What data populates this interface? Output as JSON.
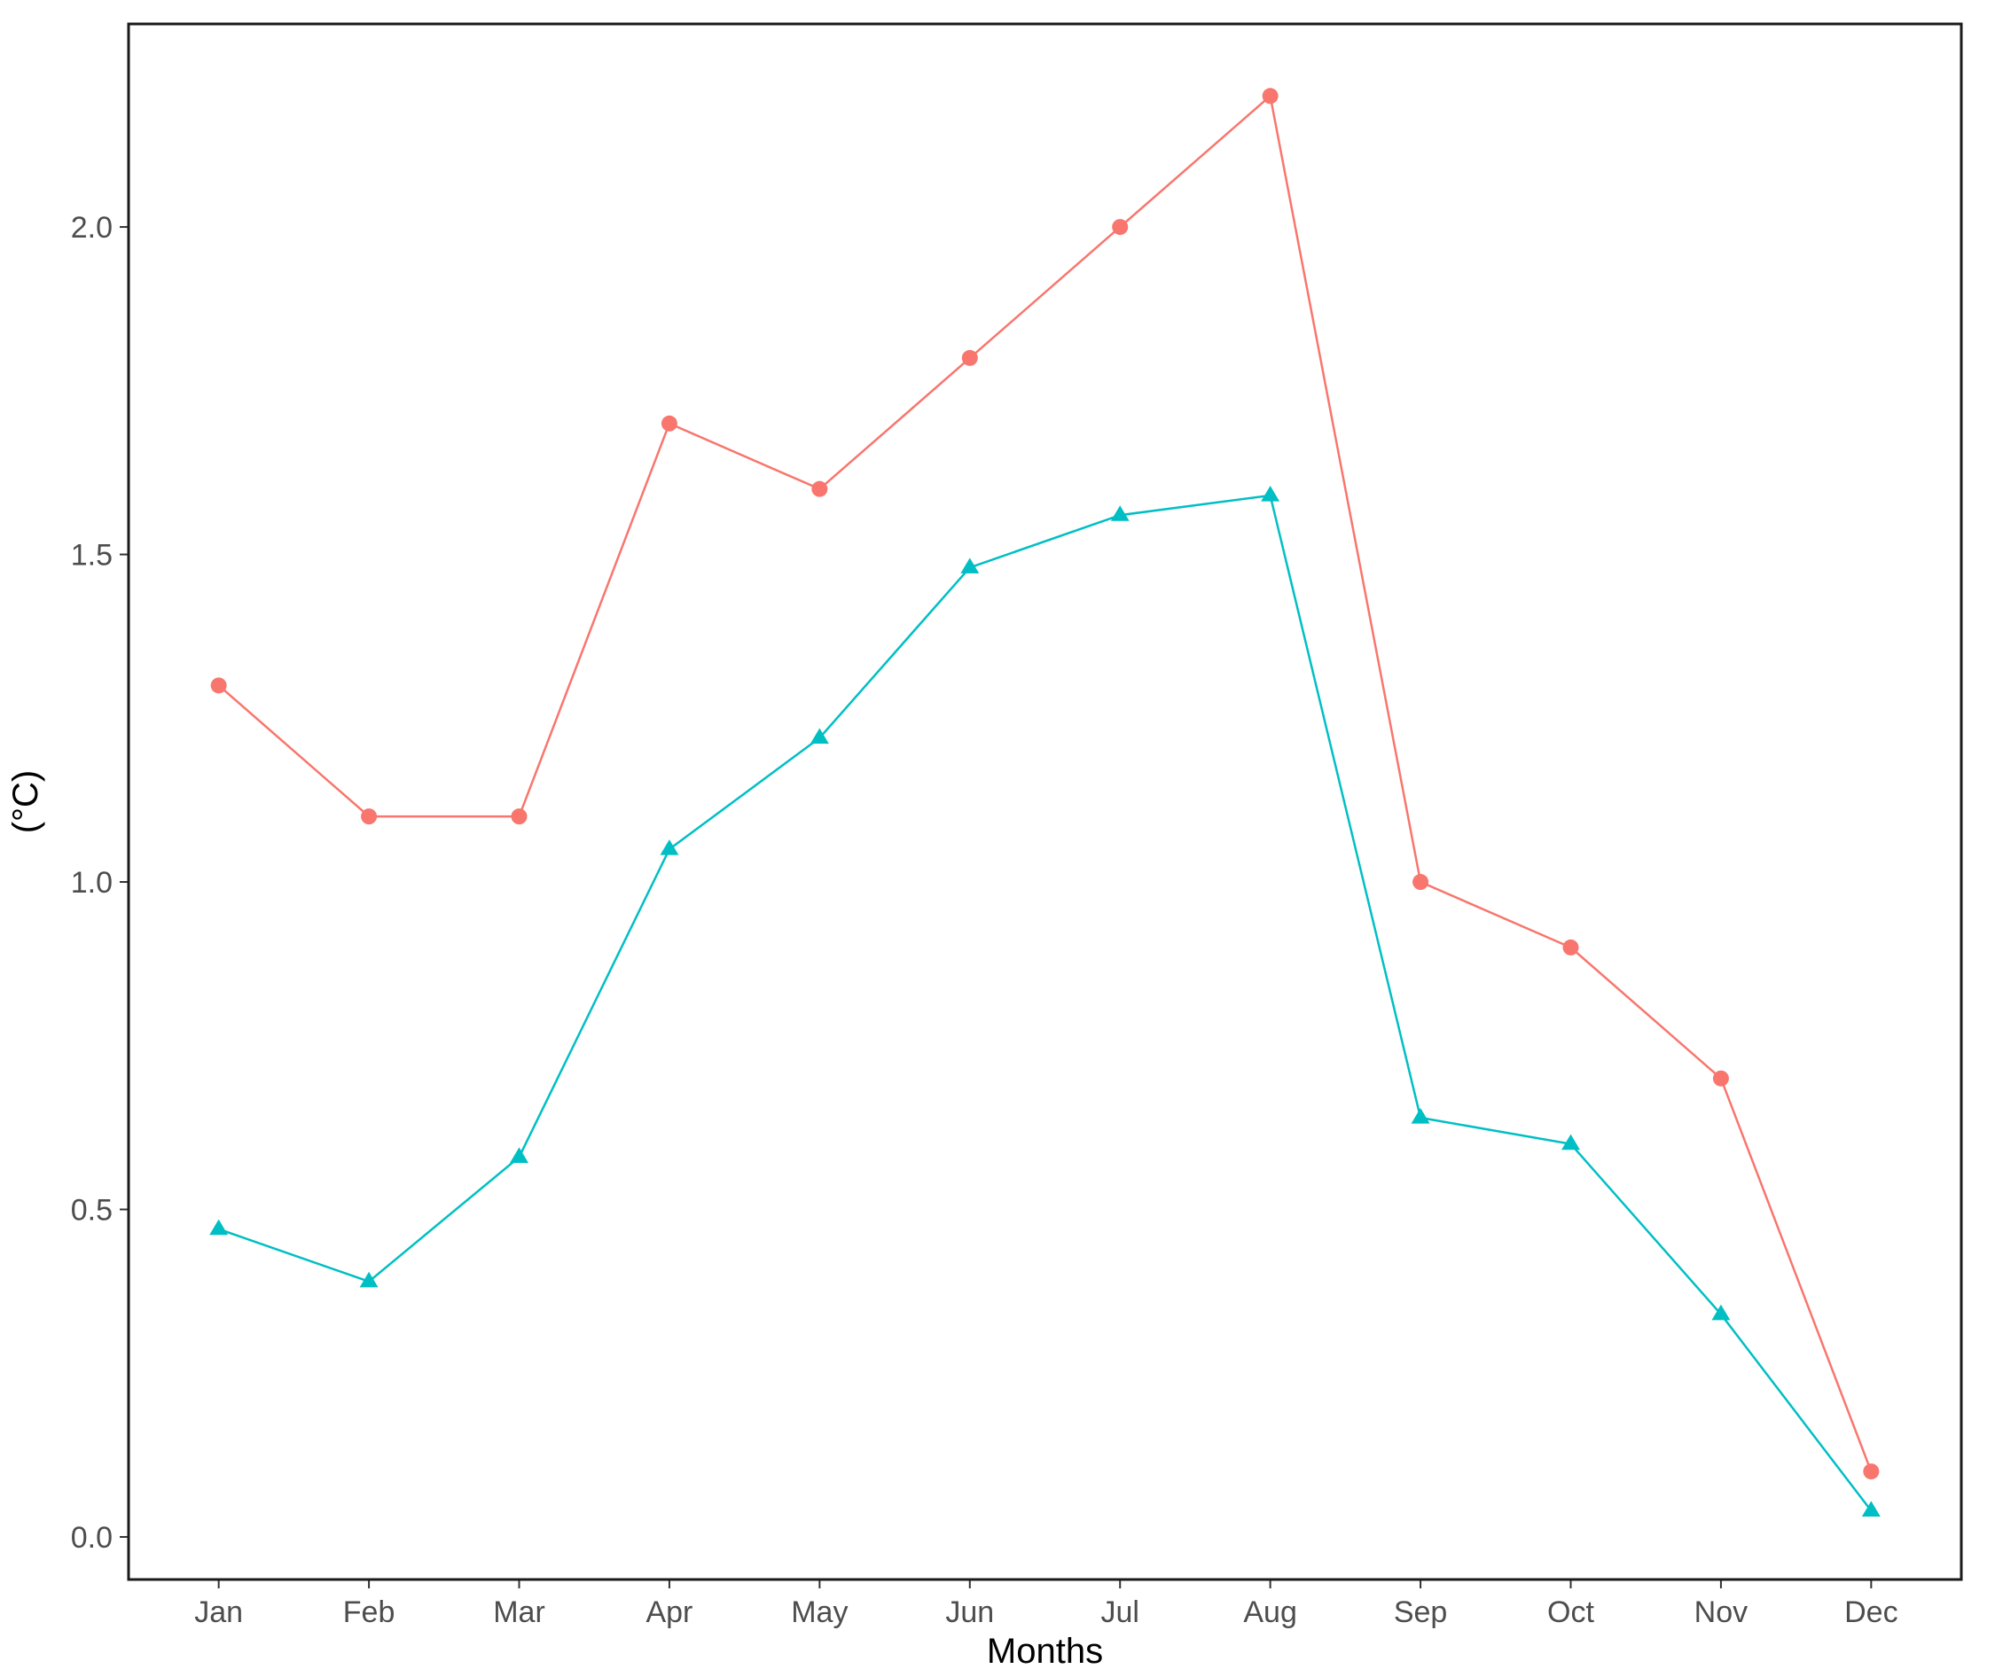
{
  "chart_data": {
    "type": "line",
    "title": "",
    "xlabel": "Months",
    "ylabel": "(°C)",
    "categories": [
      "Jan",
      "Feb",
      "Mar",
      "Apr",
      "May",
      "Jun",
      "Jul",
      "Aug",
      "Sep",
      "Oct",
      "Nov",
      "Dec"
    ],
    "ylim": [
      -0.065,
      2.31
    ],
    "yticks": [
      0.0,
      0.5,
      1.0,
      1.5,
      2.0
    ],
    "ytick_labels": [
      "0.0",
      "0.5",
      "1.0",
      "1.5",
      "2.0"
    ],
    "grid": false,
    "legend": "none",
    "series": [
      {
        "marker": "circle",
        "color": "#F8766D",
        "values": [
          1.3,
          1.1,
          1.1,
          1.7,
          1.6,
          1.8,
          2.0,
          2.2,
          1.0,
          0.9,
          0.7,
          0.1
        ]
      },
      {
        "marker": "triangle",
        "color": "#00BFC4",
        "values": [
          0.47,
          0.39,
          0.58,
          1.05,
          1.22,
          1.48,
          1.56,
          1.59,
          0.64,
          0.6,
          0.34,
          0.04
        ]
      }
    ]
  }
}
